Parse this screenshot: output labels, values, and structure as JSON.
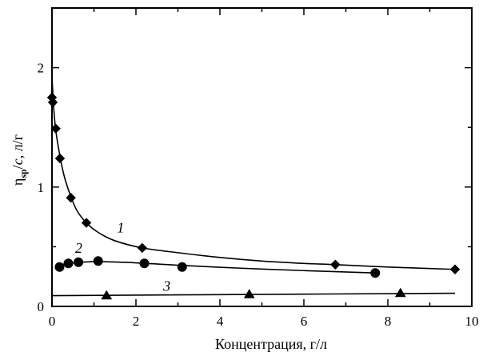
{
  "chart_data": {
    "type": "scatter",
    "xlabel": "Концентрация, г/л",
    "ylabel_main": "η",
    "ylabel_sub": "sp",
    "ylabel_rest": "/",
    "ylabel_c": "c",
    "ylabel_unit": ", л/г",
    "xlim": [
      0,
      10
    ],
    "ylim": [
      0,
      2.5
    ],
    "xticks": [
      0,
      2,
      4,
      6,
      8,
      10
    ],
    "yticks": [
      0,
      1,
      2
    ],
    "xtick_labels": [
      "0",
      "2",
      "4",
      "6",
      "8",
      "10"
    ],
    "ytick_labels": [
      "0",
      "1",
      "2"
    ],
    "series": [
      {
        "name": "1",
        "marker": "diamond",
        "points": [
          [
            0.0,
            1.75
          ],
          [
            0.02,
            1.71
          ],
          [
            0.09,
            1.49
          ],
          [
            0.19,
            1.24
          ],
          [
            0.45,
            0.91
          ],
          [
            0.82,
            0.7
          ],
          [
            2.15,
            0.49
          ],
          [
            6.75,
            0.35
          ],
          [
            9.6,
            0.31
          ]
        ],
        "curve": [
          [
            0.0,
            1.92
          ],
          [
            0.05,
            1.62
          ],
          [
            0.1,
            1.45
          ],
          [
            0.2,
            1.24
          ],
          [
            0.3,
            1.08
          ],
          [
            0.45,
            0.92
          ],
          [
            0.6,
            0.8
          ],
          [
            0.82,
            0.7
          ],
          [
            1.1,
            0.62
          ],
          [
            1.5,
            0.55
          ],
          [
            2.15,
            0.49
          ],
          [
            3.0,
            0.45
          ],
          [
            4.0,
            0.41
          ],
          [
            5.0,
            0.38
          ],
          [
            6.0,
            0.36
          ],
          [
            6.75,
            0.35
          ],
          [
            8.0,
            0.33
          ],
          [
            9.6,
            0.31
          ]
        ]
      },
      {
        "name": "2",
        "marker": "circle",
        "points": [
          [
            0.18,
            0.33
          ],
          [
            0.39,
            0.36
          ],
          [
            0.63,
            0.37
          ],
          [
            1.1,
            0.38
          ],
          [
            2.2,
            0.36
          ],
          [
            3.1,
            0.33
          ],
          [
            7.7,
            0.28
          ]
        ],
        "curve": [
          [
            0.18,
            0.345
          ],
          [
            0.4,
            0.36
          ],
          [
            0.7,
            0.37
          ],
          [
            1.1,
            0.375
          ],
          [
            2.0,
            0.365
          ],
          [
            3.0,
            0.345
          ],
          [
            4.5,
            0.32
          ],
          [
            6.0,
            0.3
          ],
          [
            7.7,
            0.28
          ]
        ]
      },
      {
        "name": "3",
        "marker": "triangle",
        "points": [
          [
            1.3,
            0.09
          ],
          [
            4.7,
            0.1
          ],
          [
            8.3,
            0.11
          ]
        ],
        "curve": [
          [
            0.0,
            0.09
          ],
          [
            4.7,
            0.1
          ],
          [
            9.6,
            0.11
          ]
        ]
      }
    ],
    "series_label_positions": [
      [
        1.55,
        0.62
      ],
      [
        0.55,
        0.45
      ],
      [
        2.65,
        0.13
      ]
    ]
  }
}
